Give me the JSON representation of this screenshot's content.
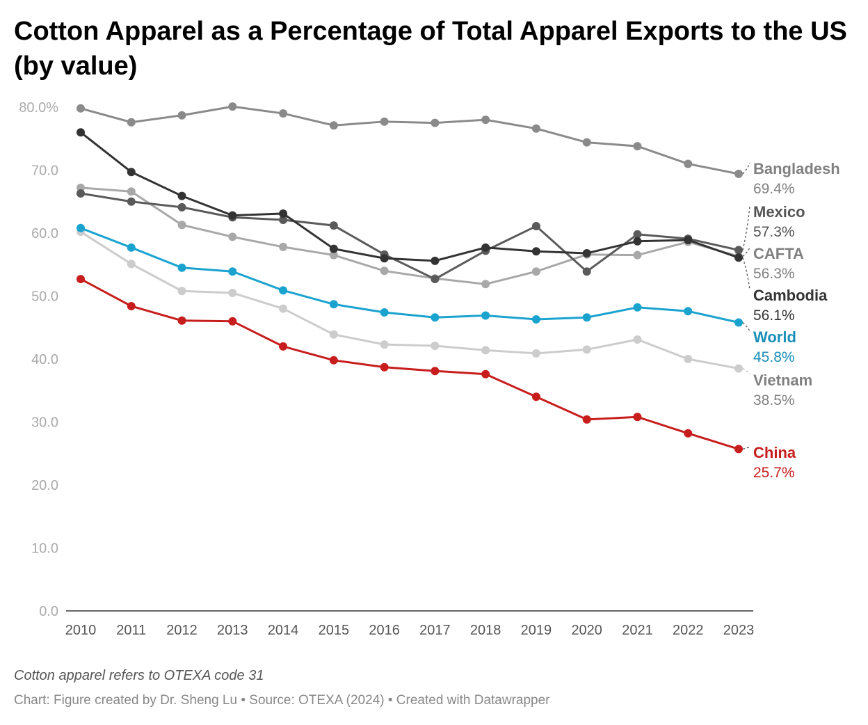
{
  "title": "Cotton Apparel as a Percentage of Total Apparel Exports to the US (by value)",
  "note": "Cotton apparel refers to OTEXA code 31",
  "footer": "Chart: Figure created by Dr. Sheng Lu • Source: OTEXA (2024) • Created with Datawrapper",
  "chart_data": {
    "type": "line",
    "x": [
      2010,
      2011,
      2012,
      2013,
      2014,
      2015,
      2016,
      2017,
      2018,
      2019,
      2020,
      2021,
      2022,
      2023
    ],
    "ylim": [
      0,
      80
    ],
    "yticks": [
      "0.0",
      "10.0",
      "20.0",
      "30.0",
      "40.0",
      "50.0",
      "60.0",
      "70.0",
      "80.0%"
    ],
    "grid": false,
    "series": [
      {
        "name": "Bangladesh",
        "end_label": "69.4%",
        "color": "#8a8a8a",
        "label_color": "#808080",
        "values": [
          79.8,
          77.6,
          78.7,
          80.1,
          79.0,
          77.1,
          77.7,
          77.5,
          78.0,
          76.6,
          74.4,
          73.8,
          71.0,
          69.4
        ]
      },
      {
        "name": "CAFTA",
        "end_label": "56.3%",
        "color": "#a8a8a8",
        "label_color": "#808080",
        "values": [
          67.2,
          66.6,
          61.3,
          59.4,
          57.8,
          56.5,
          54.0,
          52.8,
          51.9,
          53.9,
          56.6,
          56.5,
          58.6,
          56.3
        ]
      },
      {
        "name": "Vietnam",
        "end_label": "38.5%",
        "color": "#cccccc",
        "label_color": "#808080",
        "values": [
          60.2,
          55.1,
          50.8,
          50.5,
          48.0,
          43.9,
          42.3,
          42.1,
          41.4,
          40.9,
          41.5,
          43.1,
          40.0,
          38.5
        ]
      },
      {
        "name": "Mexico",
        "end_label": "57.3%",
        "color": "#5a5a5a",
        "label_color": "#555555",
        "values": [
          66.3,
          65.0,
          64.1,
          62.5,
          62.1,
          61.2,
          56.6,
          52.7,
          57.2,
          61.1,
          53.9,
          59.8,
          59.1,
          57.3
        ]
      },
      {
        "name": "Cambodia",
        "end_label": "56.1%",
        "color": "#333333",
        "label_color": "#333333",
        "values": [
          76.0,
          69.7,
          65.9,
          62.8,
          63.1,
          57.5,
          56.0,
          55.6,
          57.7,
          57.1,
          56.8,
          58.7,
          58.9,
          56.1
        ]
      },
      {
        "name": "World",
        "end_label": "45.8%",
        "color": "#1ba3d0",
        "label_color": "#1a8fb8",
        "values": [
          60.8,
          57.7,
          54.5,
          53.9,
          50.9,
          48.7,
          47.4,
          46.6,
          46.9,
          46.3,
          46.6,
          48.2,
          47.6,
          45.8
        ]
      },
      {
        "name": "China",
        "end_label": "25.7%",
        "color": "#c71e1d",
        "label_color": "#c71e1d",
        "values": [
          52.7,
          48.4,
          46.1,
          46.0,
          42.0,
          39.8,
          38.7,
          38.1,
          37.6,
          34.0,
          30.4,
          30.8,
          28.2,
          25.7
        ]
      }
    ]
  }
}
